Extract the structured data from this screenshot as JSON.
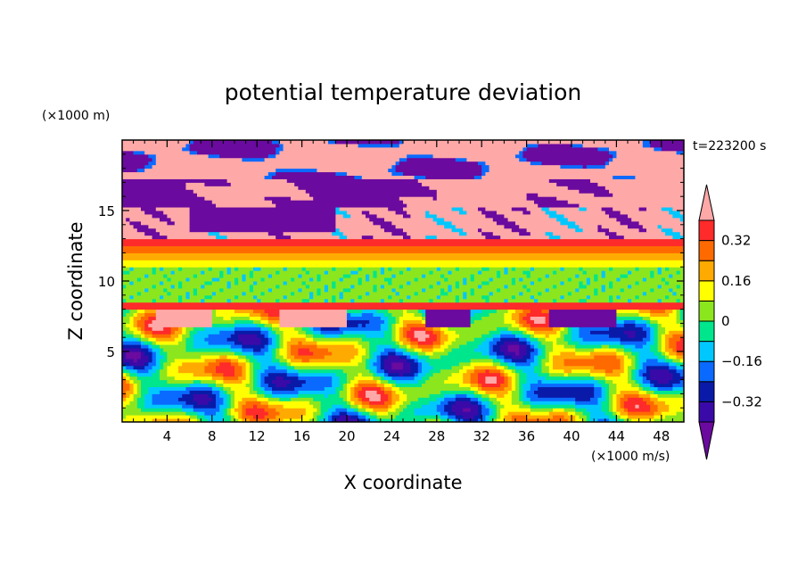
{
  "chart_data": {
    "type": "heatmap",
    "title": "potential temperature deviation",
    "xlabel": "X coordinate",
    "ylabel": "Z coordinate",
    "x_units": "(×1000 m/s)",
    "y_units": "(×1000 m)",
    "time_label": "t=223200 s",
    "xlim": [
      0,
      50
    ],
    "ylim": [
      0,
      20
    ],
    "x_ticks": [
      4,
      8,
      12,
      16,
      20,
      24,
      28,
      32,
      36,
      40,
      44,
      48
    ],
    "y_ticks": [
      5,
      10,
      15
    ],
    "colorbar": {
      "levels": [
        -0.4,
        -0.32,
        -0.24,
        -0.16,
        -0.08,
        0,
        0.08,
        0.16,
        0.24,
        0.32,
        0.4
      ],
      "tick_labels": [
        "-0.32",
        "-0.16",
        "0",
        "0.16",
        "0.32"
      ],
      "tick_values": [
        -0.32,
        -0.16,
        0,
        0.16,
        0.32
      ],
      "colors": [
        "#6a0a9e",
        "#3a0aa8",
        "#0a1aa8",
        "#0a6aff",
        "#00c8ff",
        "#00e68c",
        "#8ce61e",
        "#ffff00",
        "#ffaa00",
        "#ff6a00",
        "#ff2a2a",
        "#ffa8a8"
      ]
    },
    "bands": [
      {
        "z": [
          17,
          20
        ],
        "value": "mixed pink/purple"
      },
      {
        "z": [
          13.5,
          15
        ],
        "value": "pink/purple mix"
      },
      {
        "z": [
          12,
          13.5
        ],
        "value": "red/orange"
      },
      {
        "z": [
          8.5,
          12
        ],
        "value": "green/yellow"
      },
      {
        "z": [
          0,
          8
        ],
        "value": "turbulent mix"
      }
    ]
  }
}
